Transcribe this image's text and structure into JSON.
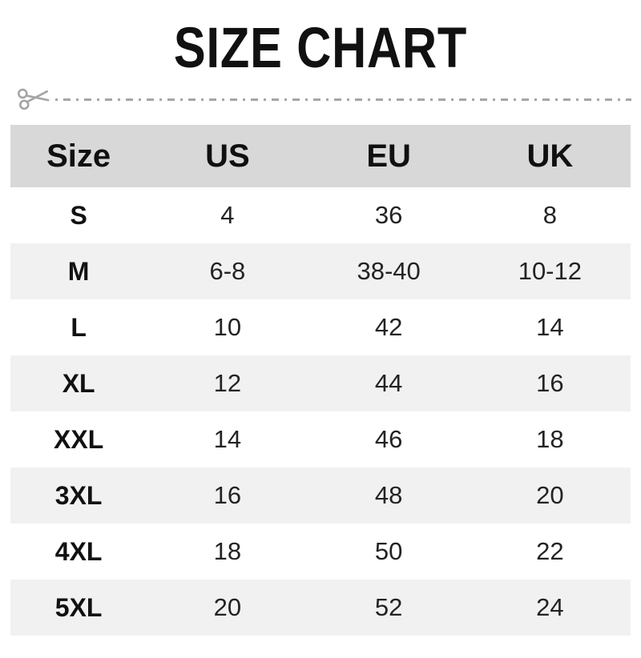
{
  "title": "SIZE CHART",
  "cut_line": {
    "icon": "scissors-icon",
    "style": "dash-dot"
  },
  "chart_data": {
    "type": "table",
    "title": "SIZE CHART",
    "columns": [
      "Size",
      "US",
      "EU",
      "UK"
    ],
    "rows": [
      [
        "S",
        "4",
        "36",
        "8"
      ],
      [
        "M",
        "6-8",
        "38-40",
        "10-12"
      ],
      [
        "L",
        "10",
        "42",
        "14"
      ],
      [
        "XL",
        "12",
        "44",
        "16"
      ],
      [
        "XXL",
        "14",
        "46",
        "18"
      ],
      [
        "3XL",
        "16",
        "48",
        "20"
      ],
      [
        "4XL",
        "18",
        "50",
        "22"
      ],
      [
        "5XL",
        "20",
        "52",
        "24"
      ]
    ],
    "layout": {
      "header_row_shaded": true,
      "zebra_striping": "even data rows shaded (M, XL, 3XL, 5XL)"
    }
  },
  "colors": {
    "header_bg": "#d8d8d8",
    "alt_row_bg": "#f1f1f1",
    "title_text": "#111111",
    "body_text": "#232323",
    "cut_line": "#a5a5a5"
  }
}
